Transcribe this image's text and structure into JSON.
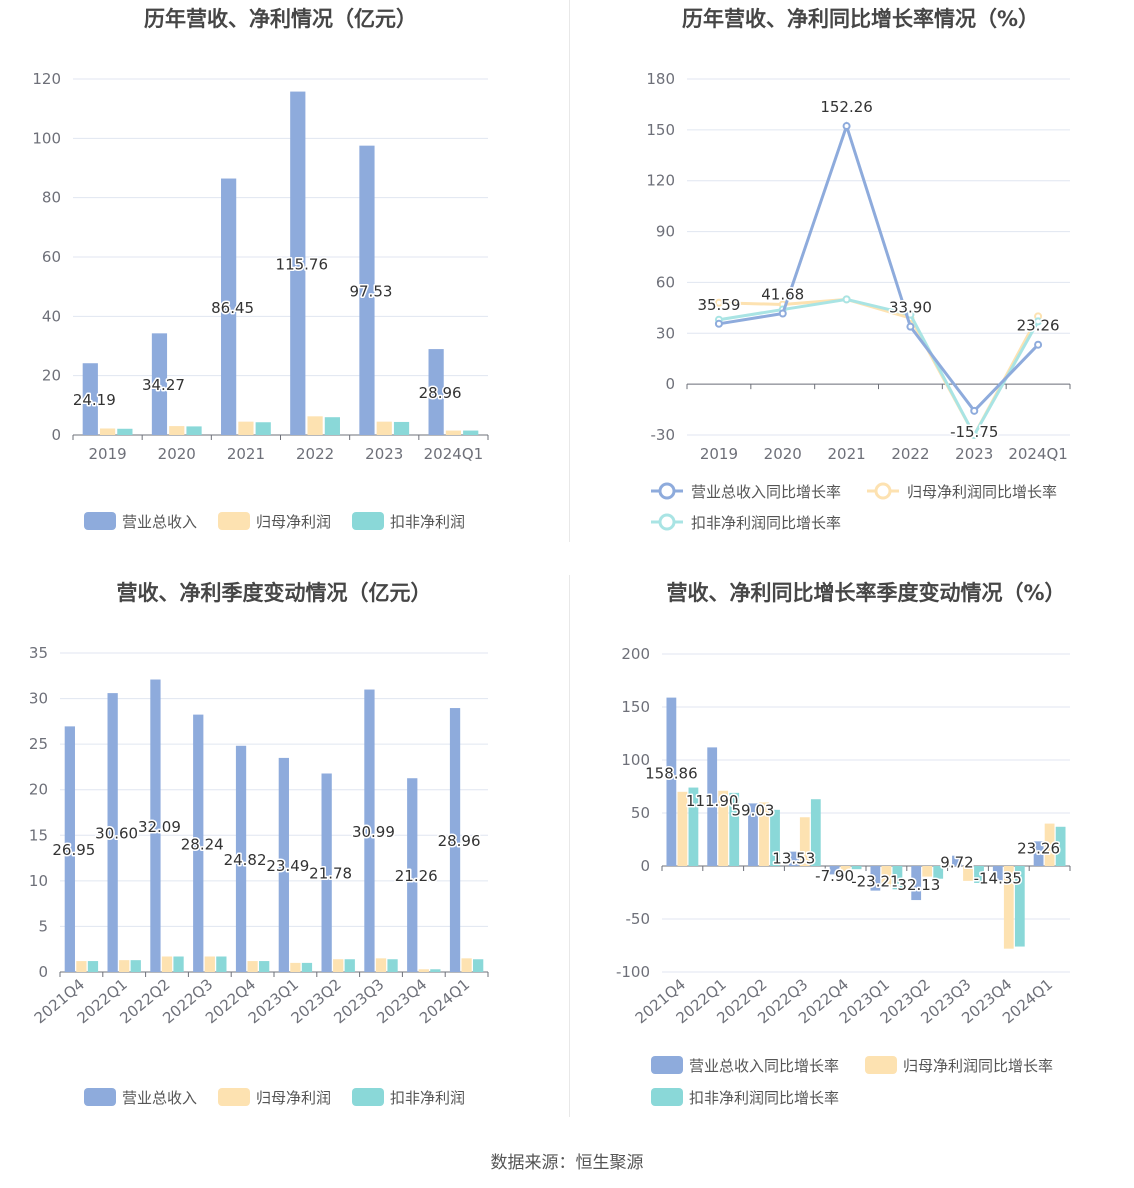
{
  "colors": {
    "revenue": "#8eabdc",
    "profit": "#fde2b1",
    "deducted": "#8ad8d8",
    "revenue_line": "#8eabdc",
    "profit_line": "#fde2b1",
    "deducted_line": "#a9e4e4",
    "axis": "#6e7079",
    "grid": "#e0e6f1",
    "title": "#464646"
  },
  "footer": {
    "source": "数据来源：恒生聚源"
  },
  "chart_data": [
    {
      "type": "bar",
      "title": "历年营收、净利情况（亿元）",
      "categories": [
        "2019",
        "2020",
        "2021",
        "2022",
        "2023",
        "2024Q1"
      ],
      "ylim": [
        0,
        120
      ],
      "yticks": [
        0,
        20,
        40,
        60,
        80,
        100,
        120
      ],
      "legend": "bottom",
      "series": [
        {
          "name": "营业总收入",
          "values": [
            24.19,
            34.27,
            86.45,
            115.76,
            97.53,
            28.96
          ],
          "labels": [
            "24.19",
            "34.27",
            "86.45",
            "115.76",
            "97.53",
            "28.96"
          ]
        },
        {
          "name": "归母净利润",
          "values": [
            2.2,
            3.0,
            4.5,
            6.3,
            4.5,
            1.5
          ]
        },
        {
          "name": "扣非净利润",
          "values": [
            2.1,
            2.9,
            4.3,
            6.0,
            4.4,
            1.5
          ]
        }
      ]
    },
    {
      "type": "line",
      "title": "历年营收、净利同比增长率情况（%）",
      "categories": [
        "2019",
        "2020",
        "2021",
        "2022",
        "2023",
        "2024Q1"
      ],
      "ylim": [
        -30,
        180
      ],
      "yticks": [
        -30,
        0,
        30,
        60,
        90,
        120,
        150,
        180
      ],
      "legend": "bottom",
      "series": [
        {
          "name": "营业总收入同比增长率",
          "values": [
            35.59,
            41.68,
            152.26,
            33.9,
            -15.75,
            23.26
          ],
          "labels": [
            "35.59",
            "41.68",
            "152.26",
            "33.90",
            "-15.75",
            "23.26"
          ]
        },
        {
          "name": "归母净利润同比增长率",
          "values": [
            48,
            47,
            50,
            39,
            -30,
            40
          ]
        },
        {
          "name": "扣非净利润同比增长率",
          "values": [
            38,
            44,
            50,
            41,
            -30,
            37
          ]
        }
      ]
    },
    {
      "type": "bar",
      "title": "营收、净利季度变动情况（亿元）",
      "categories": [
        "2021Q4",
        "2022Q1",
        "2022Q2",
        "2022Q3",
        "2022Q4",
        "2023Q1",
        "2023Q2",
        "2023Q3",
        "2023Q4",
        "2024Q1"
      ],
      "ylim": [
        0,
        35
      ],
      "yticks": [
        0,
        5,
        10,
        15,
        20,
        25,
        30,
        35
      ],
      "legend": "bottom",
      "series": [
        {
          "name": "营业总收入",
          "values": [
            26.95,
            30.6,
            32.09,
            28.24,
            24.82,
            23.49,
            21.78,
            30.99,
            21.26,
            28.96
          ],
          "labels": [
            "26.95",
            "30.60",
            "32.09",
            "28.24",
            "24.82",
            "23.49",
            "21.78",
            "30.99",
            "21.26",
            "28.96"
          ]
        },
        {
          "name": "归母净利润",
          "values": [
            1.2,
            1.3,
            1.7,
            1.7,
            1.2,
            1.0,
            1.4,
            1.5,
            0.3,
            1.5
          ]
        },
        {
          "name": "扣非净利润",
          "values": [
            1.2,
            1.3,
            1.7,
            1.7,
            1.2,
            1.0,
            1.4,
            1.4,
            0.3,
            1.4
          ]
        }
      ]
    },
    {
      "type": "bar",
      "title": "营收、净利同比增长率季度变动情况（%）",
      "categories": [
        "2021Q4",
        "2022Q1",
        "2022Q2",
        "2022Q3",
        "2022Q4",
        "2023Q1",
        "2023Q2",
        "2023Q3",
        "2023Q4",
        "2024Q1"
      ],
      "ylim": [
        -100,
        200
      ],
      "yticks": [
        -100,
        -50,
        0,
        50,
        100,
        150,
        200
      ],
      "legend": "bottom",
      "series": [
        {
          "name": "营业总收入同比增长率",
          "values": [
            158.86,
            111.9,
            59.03,
            13.53,
            -7.9,
            -23.21,
            -32.13,
            9.72,
            -14.35,
            23.26
          ],
          "labels": [
            "158.86",
            "111.90",
            "59.03",
            "13.53",
            "-7.90",
            "-23.21",
            "-32.13",
            "9.72",
            "-14.35",
            "23.26"
          ]
        },
        {
          "name": "归母净利润同比增长率",
          "values": [
            70,
            71,
            60,
            46,
            -5,
            -20,
            -10,
            -14,
            -78,
            40
          ]
        },
        {
          "name": "扣非净利润同比增长率",
          "values": [
            74,
            69,
            53,
            63,
            -3,
            -22,
            -12,
            -16,
            -76,
            37
          ]
        }
      ]
    }
  ]
}
